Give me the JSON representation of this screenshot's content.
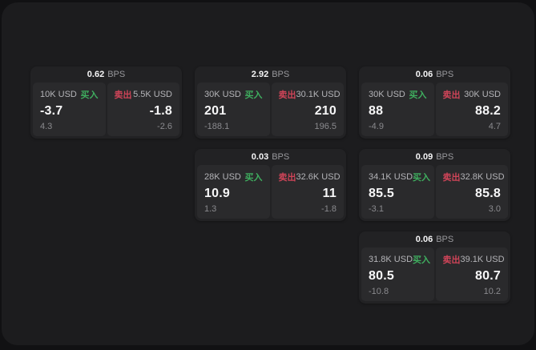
{
  "colors": {
    "buy_green": "#3fae5f",
    "sell_red": "#cf4458",
    "surface": "#1c1c1e",
    "card": "#222224",
    "panel": "#2a2a2c"
  },
  "labels": {
    "bps_unit": "BPS",
    "buy": "买入",
    "sell": "卖出"
  },
  "cards": [
    {
      "bps": "0.62",
      "buy": {
        "amount": "10K USD",
        "price": "-3.7",
        "change": "4.3"
      },
      "sell": {
        "amount": "5.5K USD",
        "price": "-1.8",
        "change": "-2.6"
      }
    },
    {
      "bps": "2.92",
      "buy": {
        "amount": "30K USD",
        "price": "201",
        "change": "-188.1"
      },
      "sell": {
        "amount": "30.1K USD",
        "price": "210",
        "change": "196.5"
      }
    },
    {
      "bps": "0.06",
      "buy": {
        "amount": "30K USD",
        "price": "88",
        "change": "-4.9"
      },
      "sell": {
        "amount": "30K USD",
        "price": "88.2",
        "change": "4.7"
      }
    },
    {
      "bps": "0.03",
      "buy": {
        "amount": "28K USD",
        "price": "10.9",
        "change": "1.3"
      },
      "sell": {
        "amount": "32.6K USD",
        "price": "11",
        "change": "-1.8"
      }
    },
    {
      "bps": "0.09",
      "buy": {
        "amount": "34.1K USD",
        "price": "85.5",
        "change": "-3.1"
      },
      "sell": {
        "amount": "32.8K USD",
        "price": "85.8",
        "change": "3.0"
      }
    },
    {
      "bps": "0.06",
      "buy": {
        "amount": "31.8K USD",
        "price": "80.5",
        "change": "-10.8"
      },
      "sell": {
        "amount": "39.1K USD",
        "price": "80.7",
        "change": "10.2"
      }
    }
  ]
}
